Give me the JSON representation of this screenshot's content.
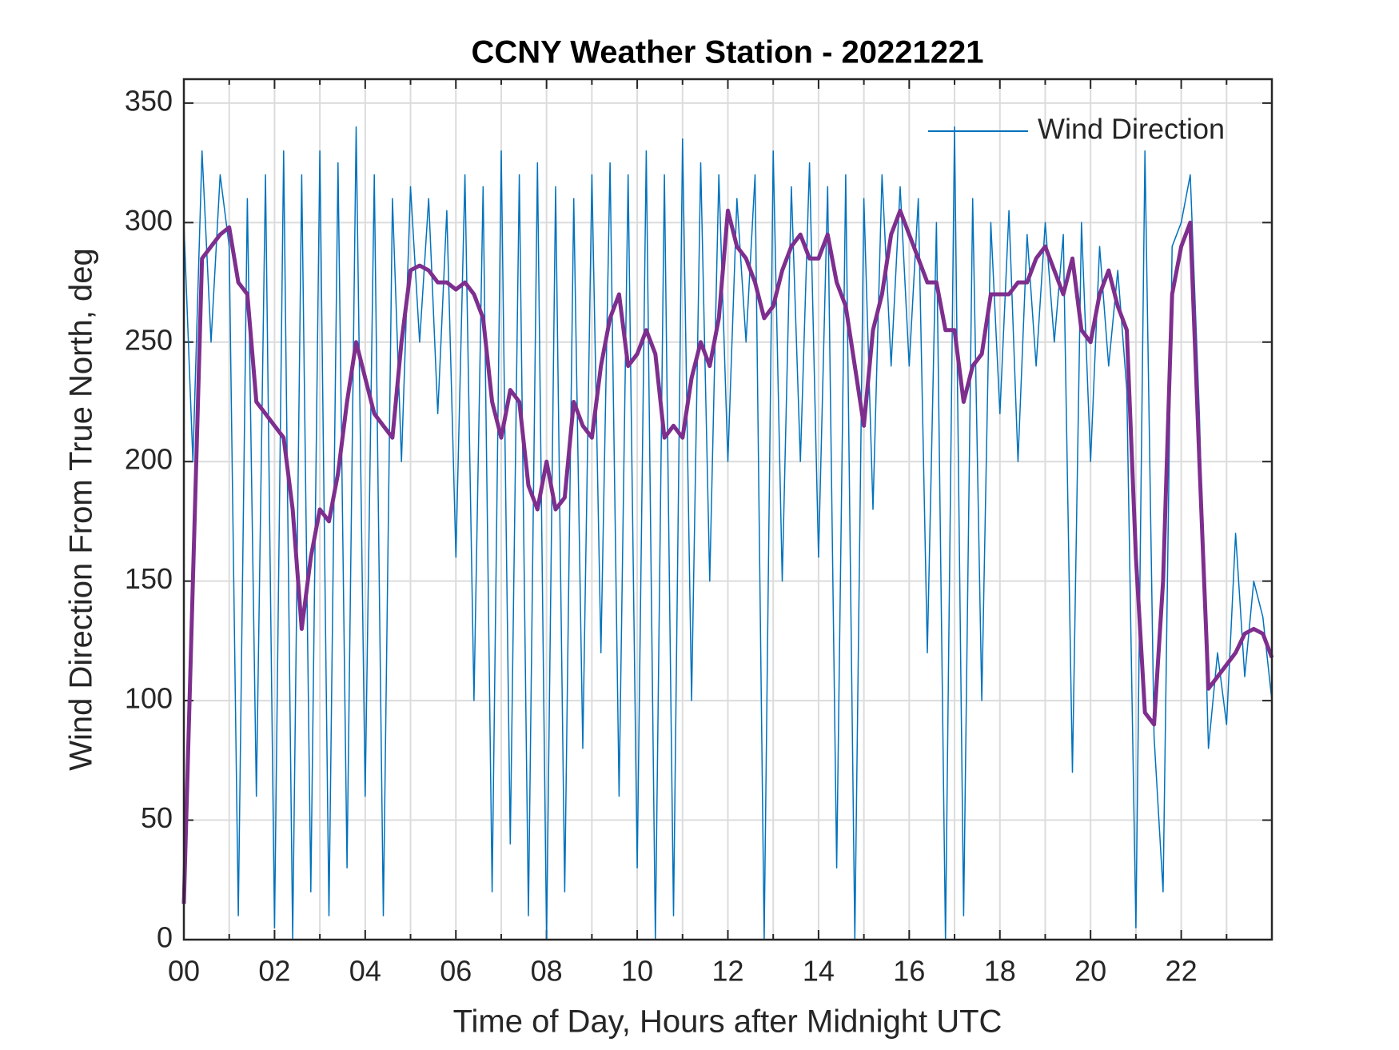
{
  "chart_data": {
    "type": "line",
    "title": "CCNY Weather Station - 20221221",
    "x_label": "Time of Day, Hours after Midnight UTC",
    "y_label": "Wind Direction From True North, deg",
    "x": [
      0,
      0.2,
      0.4,
      0.6,
      0.8,
      1,
      1.2,
      1.4,
      1.6,
      1.8,
      2,
      2.2,
      2.4,
      2.6,
      2.8,
      3,
      3.2,
      3.4,
      3.6,
      3.8,
      4,
      4.2,
      4.4,
      4.6,
      4.8,
      5,
      5.2,
      5.4,
      5.6,
      5.8,
      6,
      6.2,
      6.4,
      6.6,
      6.8,
      7,
      7.2,
      7.4,
      7.6,
      7.8,
      8,
      8.2,
      8.4,
      8.6,
      8.8,
      9,
      9.2,
      9.4,
      9.6,
      9.8,
      10,
      10.2,
      10.4,
      10.6,
      10.8,
      11,
      11.2,
      11.4,
      11.6,
      11.8,
      12,
      12.2,
      12.4,
      12.6,
      12.8,
      13,
      13.2,
      13.4,
      13.6,
      13.8,
      14,
      14.2,
      14.4,
      14.6,
      14.8,
      15,
      15.2,
      15.4,
      15.6,
      15.8,
      16,
      16.2,
      16.4,
      16.6,
      16.8,
      17,
      17.2,
      17.4,
      17.6,
      17.8,
      18,
      18.2,
      18.4,
      18.6,
      18.8,
      19,
      19.2,
      19.4,
      19.6,
      19.8,
      20,
      20.2,
      20.4,
      20.6,
      20.8,
      21,
      21.2,
      21.4,
      21.6,
      21.8,
      22,
      22.2,
      22.4,
      22.6,
      22.8,
      23,
      23.2,
      23.4,
      23.6,
      23.8,
      24
    ],
    "series": [
      {
        "name": "Wind Direction",
        "color": "#0072bd",
        "width": 1.5,
        "values": [
          300,
          200,
          330,
          250,
          320,
          290,
          10,
          310,
          60,
          320,
          5,
          330,
          0,
          320,
          20,
          330,
          10,
          325,
          30,
          340,
          60,
          320,
          10,
          310,
          200,
          315,
          250,
          310,
          220,
          305,
          160,
          320,
          100,
          315,
          20,
          330,
          40,
          320,
          10,
          325,
          0,
          315,
          20,
          310,
          80,
          320,
          120,
          325,
          60,
          320,
          30,
          330,
          0,
          320,
          10,
          335,
          100,
          325,
          150,
          320,
          200,
          310,
          250,
          320,
          0,
          330,
          150,
          315,
          200,
          325,
          160,
          315,
          30,
          320,
          0,
          310,
          180,
          320,
          240,
          315,
          240,
          310,
          120,
          300,
          0,
          340,
          10,
          310,
          100,
          300,
          220,
          305,
          200,
          295,
          240,
          300,
          250,
          295,
          70,
          300,
          200,
          290,
          240,
          280,
          230,
          5,
          330,
          85,
          20,
          290,
          300,
          320,
          220,
          80,
          120,
          90,
          170,
          110,
          150,
          135,
          100
        ]
      },
      {
        "color": "#7e2f8e",
        "width": 5,
        "values": [
          15,
          150,
          285,
          290,
          295,
          298,
          275,
          270,
          225,
          220,
          215,
          210,
          180,
          130,
          160,
          180,
          175,
          195,
          225,
          250,
          235,
          220,
          215,
          210,
          250,
          280,
          282,
          280,
          275,
          275,
          272,
          275,
          270,
          260,
          225,
          210,
          230,
          225,
          190,
          180,
          200,
          180,
          185,
          225,
          215,
          210,
          240,
          260,
          270,
          240,
          245,
          255,
          245,
          210,
          215,
          210,
          235,
          250,
          240,
          260,
          305,
          290,
          285,
          275,
          260,
          265,
          280,
          290,
          295,
          285,
          285,
          295,
          275,
          265,
          240,
          215,
          255,
          270,
          295,
          305,
          295,
          285,
          275,
          275,
          255,
          255,
          225,
          240,
          245,
          270,
          270,
          270,
          275,
          275,
          285,
          290,
          280,
          270,
          285,
          255,
          250,
          270,
          280,
          265,
          255,
          160,
          95,
          90,
          150,
          270,
          290,
          300,
          200,
          105,
          110,
          115,
          120,
          128,
          130,
          128,
          118
        ]
      }
    ],
    "xlim": [
      0,
      24
    ],
    "xticks": [
      {
        "value": 0,
        "label": "00"
      },
      {
        "value": 2,
        "label": "02"
      },
      {
        "value": 4,
        "label": "04"
      },
      {
        "value": 6,
        "label": "06"
      },
      {
        "value": 8,
        "label": "08"
      },
      {
        "value": 10,
        "label": "10"
      },
      {
        "value": 12,
        "label": "12"
      },
      {
        "value": 14,
        "label": "14"
      },
      {
        "value": 16,
        "label": "16"
      },
      {
        "value": 18,
        "label": "18"
      },
      {
        "value": 20,
        "label": "20"
      },
      {
        "value": 22,
        "label": "22"
      }
    ],
    "xminorticks": [
      1,
      3,
      5,
      7,
      9,
      11,
      13,
      15,
      17,
      19,
      21,
      23
    ],
    "ylim": [
      0,
      360
    ],
    "yticks": [
      0,
      50,
      100,
      150,
      200,
      250,
      300,
      350
    ],
    "grid": true,
    "legend": "upper right"
  }
}
